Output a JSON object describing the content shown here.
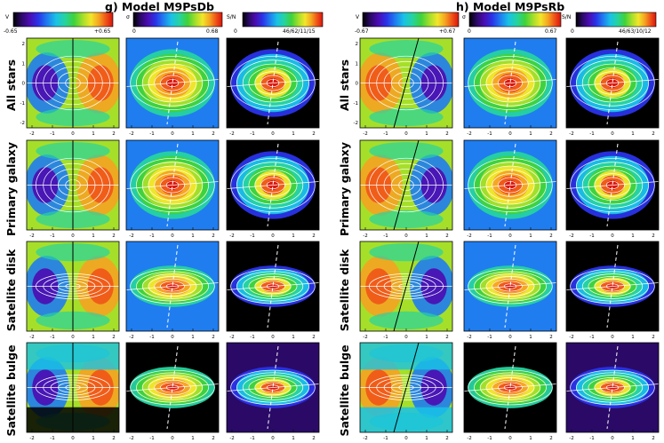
{
  "figure": {
    "panel_g_title": "g) Model M9PsDb",
    "panel_h_title": "h) Model M9PsRb",
    "row_labels": [
      "All stars",
      "Primary galaxy",
      "Satellite disk",
      "Satellite bulge"
    ],
    "tick_labels": [
      "-2",
      "-1",
      "0",
      "1",
      "2"
    ],
    "colorbars": {
      "g": [
        {
          "symbol": "V",
          "min": "-0.65",
          "max": "+0.65"
        },
        {
          "symbol": "σ",
          "min": "0",
          "max": "0.68"
        },
        {
          "symbol": "S/N",
          "min": "0",
          "max": "46/62/11/15"
        }
      ],
      "h": [
        {
          "symbol": "V",
          "min": "-0.67",
          "max": "+0.67"
        },
        {
          "symbol": "σ",
          "min": "0",
          "max": "0.67"
        },
        {
          "symbol": "S/N",
          "min": "0",
          "max": "46/63/10/12"
        }
      ]
    },
    "palette": [
      "#000000",
      "#2a0a66",
      "#4b0bb0",
      "#2a33e8",
      "#1f7df0",
      "#19c2e6",
      "#26d3a0",
      "#3fd23a",
      "#a6df2a",
      "#f2e62a",
      "#f5a321",
      "#ef5418",
      "#d8140d",
      "#bfbfbf"
    ],
    "contour_color": "#ffffff"
  }
}
